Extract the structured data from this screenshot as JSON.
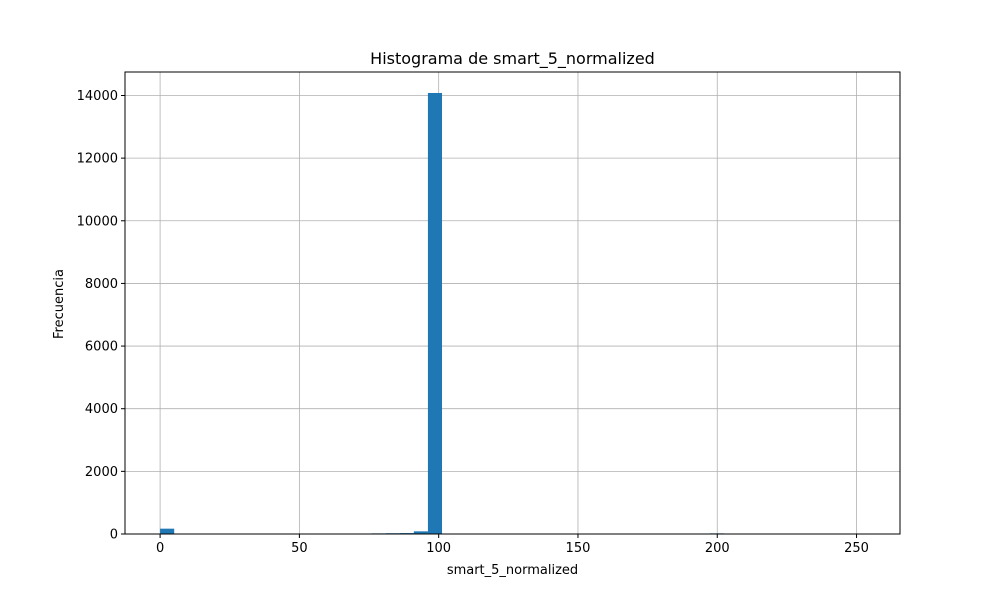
{
  "chart_data": {
    "type": "bar",
    "title": "Histograma de smart_5_normalized",
    "xlabel": "smart_5_normalized",
    "ylabel": "Frecuencia",
    "xlim": [
      -12.6,
      265.6
    ],
    "ylim": [
      0,
      14750
    ],
    "xticks": [
      0,
      50,
      100,
      150,
      200,
      250
    ],
    "yticks": [
      0,
      2000,
      4000,
      6000,
      8000,
      10000,
      12000,
      14000
    ],
    "grid": true,
    "bar_color": "#1f77b4",
    "bin_edges_start": 0,
    "bin_width": 5.06,
    "counts": [
      170,
      0,
      0,
      0,
      0,
      0,
      0,
      0,
      0,
      0,
      0,
      0,
      0,
      0,
      15,
      20,
      25,
      30,
      85,
      14080,
      0,
      0,
      0,
      0,
      0,
      0,
      0,
      0,
      0,
      0,
      0,
      0,
      0,
      0,
      0,
      0,
      0,
      0,
      0,
      20,
      0,
      0,
      0,
      0,
      0,
      0,
      0,
      0,
      0,
      15
    ]
  }
}
